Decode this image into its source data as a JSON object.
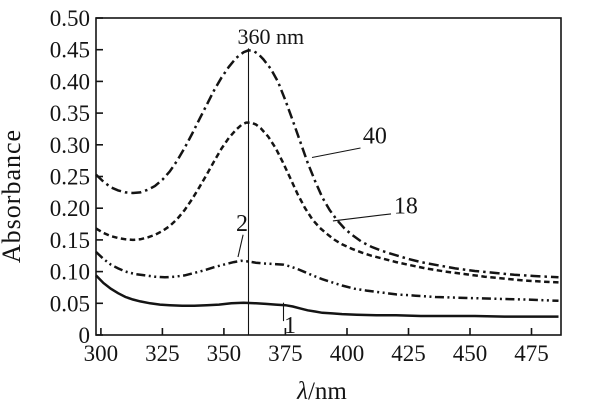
{
  "figure": {
    "background": "#ffffff",
    "ink_color": "#141414"
  },
  "chart_data": {
    "type": "line",
    "title": "",
    "xlabel": "λ/nm",
    "ylabel": "Absorbance",
    "xlim": [
      298,
      487
    ],
    "ylim": [
      0,
      0.5
    ],
    "x_ticks": [
      300,
      325,
      350,
      375,
      400,
      425,
      450,
      475
    ],
    "y_ticks": [
      0,
      0.05,
      0.1,
      0.15,
      0.2,
      0.25,
      0.3,
      0.35,
      0.4,
      0.45,
      0.5
    ],
    "y_tick_labels": [
      "0",
      "0.05",
      "0.10",
      "0.15",
      "0.20",
      "0.25",
      "0.30",
      "0.35",
      "0.40",
      "0.45",
      "0.50"
    ],
    "grid": false,
    "legend_position": "none",
    "peak_marker": {
      "x": 360,
      "label": "360 nm",
      "line_top_a": 0.452,
      "label_x": 355.5,
      "label_a": 0.459
    },
    "curve_labels": [
      {
        "text": "40",
        "text_x": 406.5,
        "text_a": 0.302,
        "leader": [
          [
            405.5,
            0.295
          ],
          [
            385.8,
            0.28
          ]
        ]
      },
      {
        "text": "18",
        "text_x": 419.1,
        "text_a": 0.192,
        "leader": [
          [
            417.9,
            0.191
          ],
          [
            394.3,
            0.18
          ]
        ]
      },
      {
        "text": "2",
        "text_x": 354.9,
        "text_a": 0.164,
        "leader": [
          [
            357.8,
            0.158
          ],
          [
            355.7,
            0.123
          ]
        ]
      },
      {
        "text": "1",
        "text_x": 374.4,
        "text_a": 0.003,
        "leader": [
          [
            374.2,
            0.051
          ],
          [
            374.2,
            0.022
          ]
        ]
      }
    ],
    "series": [
      {
        "name": "40",
        "style": "dash-dot",
        "points": [
          [
            298,
            0.253
          ],
          [
            301,
            0.242
          ],
          [
            304,
            0.233
          ],
          [
            307,
            0.228
          ],
          [
            310,
            0.225
          ],
          [
            313,
            0.224
          ],
          [
            316,
            0.225
          ],
          [
            319,
            0.229
          ],
          [
            322,
            0.235
          ],
          [
            325,
            0.245
          ],
          [
            328,
            0.258
          ],
          [
            331,
            0.275
          ],
          [
            334,
            0.295
          ],
          [
            337,
            0.317
          ],
          [
            340,
            0.34
          ],
          [
            343,
            0.363
          ],
          [
            346,
            0.386
          ],
          [
            349,
            0.406
          ],
          [
            352,
            0.423
          ],
          [
            355,
            0.437
          ],
          [
            358,
            0.446
          ],
          [
            360,
            0.449
          ],
          [
            362,
            0.448
          ],
          [
            364,
            0.443
          ],
          [
            366,
            0.435
          ],
          [
            369,
            0.42
          ],
          [
            372,
            0.399
          ],
          [
            375,
            0.37
          ],
          [
            378,
            0.338
          ],
          [
            381,
            0.305
          ],
          [
            384,
            0.272
          ],
          [
            387,
            0.243
          ],
          [
            390,
            0.217
          ],
          [
            393,
            0.197
          ],
          [
            396,
            0.181
          ],
          [
            399,
            0.168
          ],
          [
            402,
            0.158
          ],
          [
            406,
            0.147
          ],
          [
            410,
            0.139
          ],
          [
            414,
            0.133
          ],
          [
            418,
            0.128
          ],
          [
            424,
            0.121
          ],
          [
            430,
            0.115
          ],
          [
            437,
            0.11
          ],
          [
            444,
            0.105
          ],
          [
            452,
            0.101
          ],
          [
            460,
            0.098
          ],
          [
            468,
            0.095
          ],
          [
            476,
            0.093
          ],
          [
            486,
            0.091
          ]
        ]
      },
      {
        "name": "18",
        "style": "dashed",
        "points": [
          [
            298,
            0.168
          ],
          [
            301,
            0.161
          ],
          [
            304,
            0.156
          ],
          [
            307,
            0.153
          ],
          [
            310,
            0.151
          ],
          [
            313,
            0.15
          ],
          [
            316,
            0.151
          ],
          [
            319,
            0.154
          ],
          [
            322,
            0.158
          ],
          [
            325,
            0.164
          ],
          [
            328,
            0.172
          ],
          [
            331,
            0.183
          ],
          [
            334,
            0.197
          ],
          [
            337,
            0.214
          ],
          [
            340,
            0.233
          ],
          [
            343,
            0.253
          ],
          [
            346,
            0.274
          ],
          [
            349,
            0.294
          ],
          [
            352,
            0.311
          ],
          [
            355,
            0.324
          ],
          [
            357,
            0.331
          ],
          [
            359,
            0.335
          ],
          [
            361,
            0.335
          ],
          [
            363,
            0.332
          ],
          [
            365,
            0.326
          ],
          [
            368,
            0.313
          ],
          [
            371,
            0.295
          ],
          [
            374,
            0.272
          ],
          [
            377,
            0.247
          ],
          [
            380,
            0.222
          ],
          [
            383,
            0.2
          ],
          [
            386,
            0.182
          ],
          [
            389,
            0.169
          ],
          [
            392,
            0.159
          ],
          [
            395,
            0.15
          ],
          [
            398,
            0.143
          ],
          [
            402,
            0.136
          ],
          [
            406,
            0.13
          ],
          [
            410,
            0.125
          ],
          [
            415,
            0.12
          ],
          [
            420,
            0.115
          ],
          [
            426,
            0.11
          ],
          [
            432,
            0.105
          ],
          [
            440,
            0.1
          ],
          [
            448,
            0.096
          ],
          [
            456,
            0.092
          ],
          [
            464,
            0.089
          ],
          [
            472,
            0.086
          ],
          [
            480,
            0.084
          ],
          [
            486,
            0.083
          ]
        ]
      },
      {
        "name": "2",
        "style": "dash-dot-dot",
        "points": [
          [
            298,
            0.131
          ],
          [
            301,
            0.12
          ],
          [
            304,
            0.111
          ],
          [
            307,
            0.105
          ],
          [
            310,
            0.1
          ],
          [
            314,
            0.096
          ],
          [
            318,
            0.094
          ],
          [
            322,
            0.092
          ],
          [
            326,
            0.091
          ],
          [
            330,
            0.092
          ],
          [
            334,
            0.094
          ],
          [
            338,
            0.098
          ],
          [
            342,
            0.102
          ],
          [
            346,
            0.107
          ],
          [
            350,
            0.111
          ],
          [
            354,
            0.115
          ],
          [
            357,
            0.117
          ],
          [
            360,
            0.116
          ],
          [
            363,
            0.114
          ],
          [
            366,
            0.113
          ],
          [
            370,
            0.112
          ],
          [
            374,
            0.111
          ],
          [
            377,
            0.108
          ],
          [
            380,
            0.104
          ],
          [
            383,
            0.099
          ],
          [
            386,
            0.094
          ],
          [
            390,
            0.088
          ],
          [
            394,
            0.083
          ],
          [
            398,
            0.078
          ],
          [
            403,
            0.073
          ],
          [
            408,
            0.07
          ],
          [
            414,
            0.067
          ],
          [
            420,
            0.064
          ],
          [
            428,
            0.062
          ],
          [
            436,
            0.06
          ],
          [
            444,
            0.059
          ],
          [
            452,
            0.058
          ],
          [
            462,
            0.057
          ],
          [
            472,
            0.056
          ],
          [
            486,
            0.054
          ]
        ]
      },
      {
        "name": "1",
        "style": "solid",
        "points": [
          [
            298,
            0.094
          ],
          [
            301,
            0.082
          ],
          [
            304,
            0.073
          ],
          [
            307,
            0.066
          ],
          [
            310,
            0.06
          ],
          [
            313,
            0.056
          ],
          [
            316,
            0.053
          ],
          [
            320,
            0.05
          ],
          [
            324,
            0.048
          ],
          [
            328,
            0.047
          ],
          [
            333,
            0.046
          ],
          [
            338,
            0.046
          ],
          [
            343,
            0.047
          ],
          [
            348,
            0.048
          ],
          [
            353,
            0.05
          ],
          [
            358,
            0.051
          ],
          [
            363,
            0.05
          ],
          [
            367,
            0.049
          ],
          [
            371,
            0.048
          ],
          [
            375,
            0.047
          ],
          [
            378,
            0.045
          ],
          [
            381,
            0.042
          ],
          [
            384,
            0.039
          ],
          [
            387,
            0.037
          ],
          [
            390,
            0.035
          ],
          [
            394,
            0.034
          ],
          [
            398,
            0.033
          ],
          [
            404,
            0.032
          ],
          [
            412,
            0.031
          ],
          [
            420,
            0.031
          ],
          [
            430,
            0.03
          ],
          [
            440,
            0.03
          ],
          [
            452,
            0.03
          ],
          [
            464,
            0.029
          ],
          [
            476,
            0.029
          ],
          [
            486,
            0.029
          ]
        ]
      }
    ]
  }
}
